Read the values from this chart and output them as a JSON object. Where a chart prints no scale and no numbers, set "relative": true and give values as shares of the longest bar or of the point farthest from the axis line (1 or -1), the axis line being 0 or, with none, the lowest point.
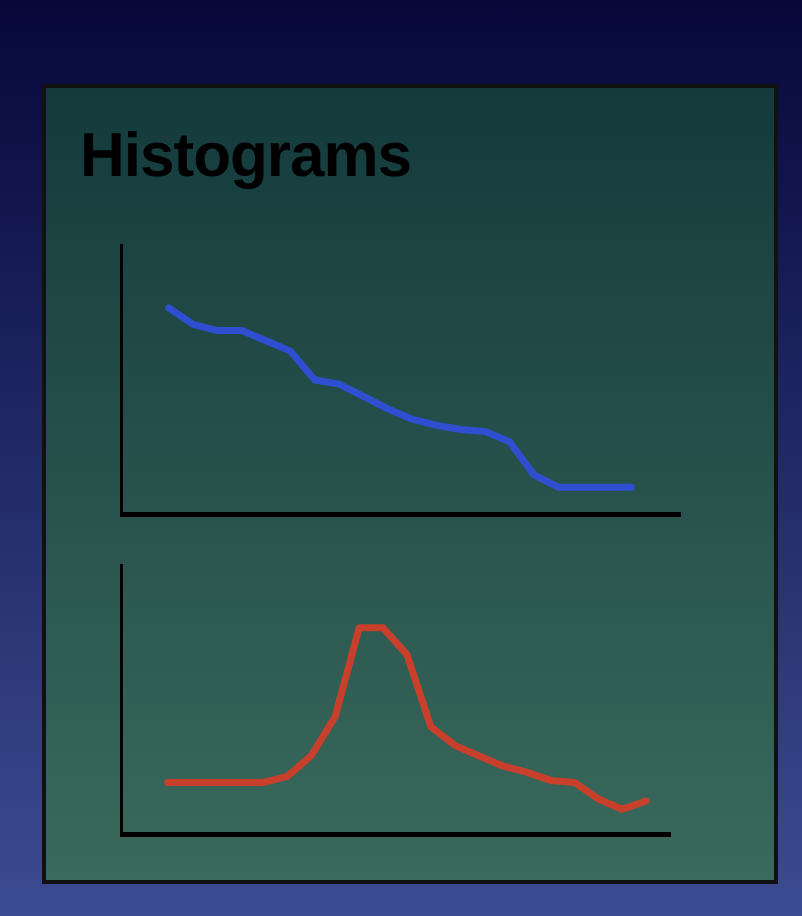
{
  "chart_data": [
    {
      "type": "line",
      "title": "Histograms",
      "relative": true,
      "categories": [
        null,
        null,
        null,
        null,
        null,
        null,
        null,
        null,
        null,
        null,
        null,
        null,
        null,
        null,
        null,
        null,
        null,
        null,
        null,
        null,
        null,
        null,
        null,
        null
      ],
      "series": [
        {
          "color": "#2f4fd0",
          "values": [
            null,
            null,
            1,
            0.92,
            0.89,
            0.89,
            0.84,
            0.79,
            0.65,
            0.63,
            0.57,
            0.51,
            0.46,
            0.43,
            0.41,
            0.4,
            0.35,
            0.19,
            0.13,
            0.13,
            0.13,
            0.13,
            null,
            null
          ]
        }
      ],
      "grid": false,
      "legend": false,
      "tick_labels": false,
      "marker": "none"
    },
    {
      "type": "line",
      "relative": true,
      "categories": [
        null,
        null,
        null,
        null,
        null,
        null,
        null,
        null,
        null,
        null,
        null,
        null,
        null,
        null,
        null,
        null,
        null,
        null,
        null,
        null,
        null,
        null,
        null,
        null
      ],
      "series": [
        {
          "color": "#c8402c",
          "values": [
            null,
            null,
            0.25,
            0.25,
            0.25,
            0.25,
            0.25,
            0.28,
            0.38,
            0.57,
            1,
            1,
            0.87,
            0.52,
            0.43,
            0.38,
            0.33,
            0.3,
            0.26,
            0.25,
            0.17,
            0.12,
            0.16,
            null
          ]
        }
      ],
      "grid": false,
      "legend": false,
      "tick_labels": false,
      "marker": "none"
    }
  ]
}
